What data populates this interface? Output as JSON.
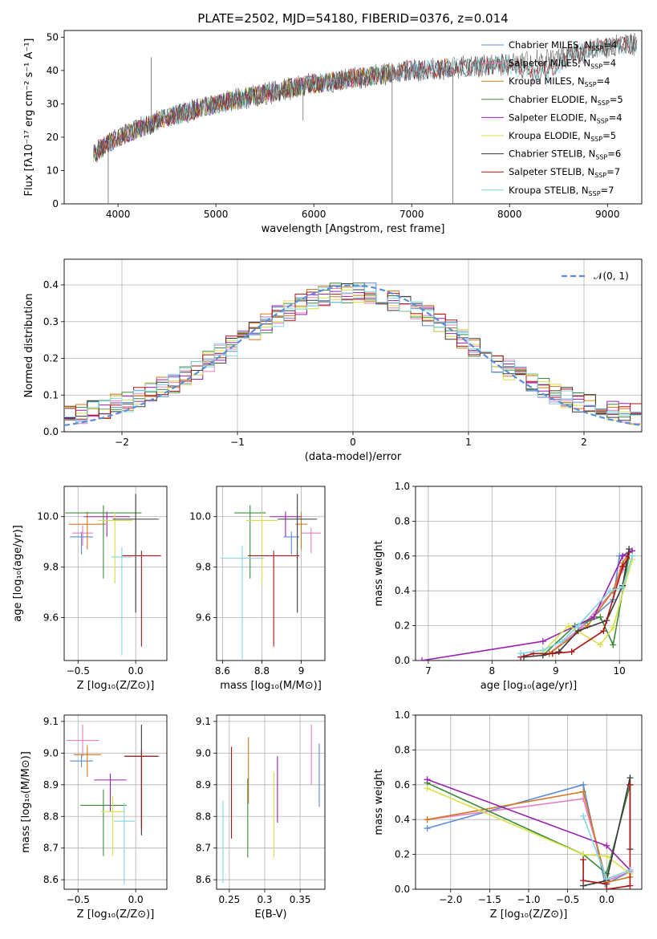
{
  "title": "PLATE=2502, MJD=54180, FIBERID=0376, z=0.014",
  "colors": {
    "Chabrier MILES": "#5b8ed8",
    "Salpeter MILES": "#e57ec0",
    "Kroupa MILES": "#d4761f",
    "Chabrier ELODIE": "#3c8a3c",
    "Salpeter ELODIE": "#9a1fb0",
    "Kroupa ELODIE": "#d8e048",
    "Chabrier STELIB": "#3a3a3a",
    "Salpeter STELIB": "#b01313",
    "Kroupa STELIB": "#7fd8e0",
    "normal": "#5b8ed8"
  },
  "chart_data": [
    {
      "type": "line",
      "id": "spectrum",
      "xlabel": "wavelength [Angstrom, rest frame]",
      "ylabel": "Flux [fλ10⁻¹⁷ erg cm⁻² s⁻¹ A⁻¹]",
      "xlim": [
        3450,
        9350
      ],
      "ylim": [
        0,
        52
      ],
      "xticks": [
        4000,
        5000,
        6000,
        7000,
        8000,
        9000
      ],
      "yticks": [
        0,
        10,
        20,
        30,
        40,
        50
      ],
      "legend_position": "upper right",
      "legend": [
        "Chabrier MILES, N_SSP=4",
        "Salpeter MILES, N_SSP=4",
        "Kroupa MILES, N_SSP=4",
        "Chabrier ELODIE, N_SSP=5",
        "Salpeter ELODIE, N_SSP=4",
        "Kroupa ELODIE, N_SSP=5",
        "Chabrier STELIB, N_SSP=6",
        "Salpeter STELIB, N_SSP=7",
        "Kroupa STELIB, N_SSP=7"
      ],
      "continuum": {
        "x": [
          3750,
          4000,
          4500,
          5000,
          5500,
          6000,
          6500,
          7000,
          7500,
          8000,
          8500,
          9000,
          9300
        ],
        "y": [
          15,
          20,
          26,
          30,
          33,
          36,
          38,
          40,
          41,
          42,
          44,
          47,
          48
        ]
      },
      "spikes": [
        {
          "x": 4340,
          "y": 44
        },
        {
          "x": 5890,
          "y": 25
        },
        {
          "x": 6800,
          "y": 0
        },
        {
          "x": 7420,
          "y": 0
        },
        {
          "x": 3900,
          "y": 0
        }
      ]
    },
    {
      "type": "line",
      "id": "residuals",
      "xlabel": "(data-model)/error",
      "ylabel": "Normed distribution",
      "xlim": [
        -2.5,
        2.5
      ],
      "ylim": [
        0,
        0.47
      ],
      "xticks": [
        -2,
        -1,
        0,
        1,
        2
      ],
      "yticks": [
        0.0,
        0.1,
        0.2,
        0.3,
        0.4
      ],
      "xtick_labels": [
        "−2",
        "−1",
        "0",
        "1",
        "2"
      ],
      "grid": true,
      "legend_label": "𝒩(0, 1)",
      "legend_position": "upper right",
      "gaussian": {
        "mu": 0,
        "sigma": 1
      }
    },
    {
      "type": "scatter",
      "id": "age-vs-Z",
      "xlabel": "Z [log₁₀(Z/Z⊙)]",
      "ylabel": "age  [log₁₀(age/yr)]",
      "xlim": [
        -0.62,
        0.27
      ],
      "ylim": [
        9.43,
        10.12
      ],
      "xticks": [
        -0.5,
        0.0
      ],
      "yticks": [
        9.6,
        9.8,
        10.0
      ],
      "xtick_labels": [
        "−0.5",
        "0.0"
      ],
      "points": [
        {
          "m": "Chabrier MILES",
          "x": -0.47,
          "xe": 0.1,
          "y": 9.92,
          "ye": [
            0.07,
            0.02
          ]
        },
        {
          "m": "Salpeter MILES",
          "x": -0.46,
          "xe": 0.09,
          "y": 9.935,
          "ye": [
            0.05,
            0.03
          ]
        },
        {
          "m": "Kroupa MILES",
          "x": -0.42,
          "xe": 0.16,
          "y": 9.97,
          "ye": [
            0.1,
            0.05
          ]
        },
        {
          "m": "Chabrier ELODIE",
          "x": -0.28,
          "xe": 0.33,
          "y": 10.015,
          "ye": [
            0.26,
            0.03
          ]
        },
        {
          "m": "Salpeter ELODIE",
          "x": -0.25,
          "xe": 0.2,
          "y": 10.0,
          "ye": [
            0.08,
            0.02
          ]
        },
        {
          "m": "Kroupa ELODIE",
          "x": -0.18,
          "xe": 0.15,
          "y": 9.985,
          "ye": [
            0.25,
            0.03
          ]
        },
        {
          "m": "Chabrier STELIB",
          "x": 0.0,
          "xe": 0.2,
          "y": 9.99,
          "ye": [
            0.37,
            0.1
          ]
        },
        {
          "m": "Salpeter STELIB",
          "x": 0.05,
          "xe": 0.17,
          "y": 9.845,
          "ye": [
            0.36,
            0.02
          ]
        },
        {
          "m": "Kroupa STELIB",
          "x": -0.12,
          "xe": 0.09,
          "y": 9.84,
          "ye": [
            0.39,
            0.04
          ]
        }
      ]
    },
    {
      "type": "scatter",
      "id": "age-vs-mass",
      "xlabel": "mass [log₁₀(M/M⊙)]",
      "xlim": [
        8.57,
        9.12
      ],
      "ylim": [
        9.43,
        10.12
      ],
      "xticks": [
        8.6,
        8.8,
        9.0
      ],
      "yticks": [
        9.6,
        9.8,
        10.0
      ],
      "points": [
        {
          "m": "Chabrier MILES",
          "x": 8.95,
          "xe": 0.04,
          "y": 9.92,
          "ye": [
            0.07,
            0.02
          ]
        },
        {
          "m": "Salpeter MILES",
          "x": 9.05,
          "xe": 0.05,
          "y": 9.935,
          "ye": [
            0.08,
            0.02
          ]
        },
        {
          "m": "Kroupa MILES",
          "x": 9.0,
          "xe": 0.03,
          "y": 9.97,
          "ye": [
            0.1,
            0.05
          ]
        },
        {
          "m": "Chabrier ELODIE",
          "x": 8.74,
          "xe": 0.08,
          "y": 10.015,
          "ye": [
            0.26,
            0.03
          ]
        },
        {
          "m": "Salpeter ELODIE",
          "x": 8.92,
          "xe": 0.08,
          "y": 10.0,
          "ye": [
            0.08,
            0.02
          ]
        },
        {
          "m": "Kroupa ELODIE",
          "x": 8.8,
          "xe": 0.08,
          "y": 9.985,
          "ye": [
            0.25,
            0.03
          ]
        },
        {
          "m": "Chabrier STELIB",
          "x": 8.98,
          "xe": 0.1,
          "y": 9.99,
          "ye": [
            0.37,
            0.1
          ]
        },
        {
          "m": "Salpeter STELIB",
          "x": 8.86,
          "xe": 0.13,
          "y": 9.845,
          "ye": [
            0.36,
            0.02
          ]
        },
        {
          "m": "Kroupa STELIB",
          "x": 8.7,
          "xe": 0.11,
          "y": 9.835,
          "ye": [
            0.4,
            0.05
          ]
        }
      ]
    },
    {
      "type": "line",
      "id": "mass-weight-vs-age",
      "xlabel": "age  [log₁₀(age/yr)]",
      "ylabel": "mass weight",
      "xlim": [
        6.8,
        10.35
      ],
      "ylim": [
        0,
        1
      ],
      "xticks": [
        7,
        8,
        9,
        10
      ],
      "yticks": [
        0.0,
        0.2,
        0.4,
        0.6,
        0.8,
        1.0
      ],
      "grid": true,
      "series": [
        {
          "m": "Chabrier MILES",
          "x": [
            8.9,
            9.4,
            9.9,
            10.0,
            10.15
          ],
          "y": [
            0.04,
            0.19,
            0.35,
            0.6,
            0.62
          ]
        },
        {
          "m": "Salpeter MILES",
          "x": [
            8.9,
            9.4,
            9.9,
            10.05,
            10.15
          ],
          "y": [
            0.04,
            0.19,
            0.4,
            0.52,
            0.6
          ]
        },
        {
          "m": "Kroupa MILES",
          "x": [
            8.9,
            9.5,
            9.9,
            10.05,
            10.15
          ],
          "y": [
            0.04,
            0.2,
            0.4,
            0.56,
            0.62
          ]
        },
        {
          "m": "Chabrier ELODIE",
          "x": [
            8.8,
            9.3,
            9.7,
            9.9,
            10.15
          ],
          "y": [
            0.03,
            0.2,
            0.25,
            0.09,
            0.6
          ]
        },
        {
          "m": "Salpeter ELODIE",
          "x": [
            6.9,
            8.8,
            9.6,
            10.05,
            10.2
          ],
          "y": [
            0.0,
            0.11,
            0.25,
            0.6,
            0.63
          ]
        },
        {
          "m": "Kroupa ELODIE",
          "x": [
            8.8,
            9.2,
            9.7,
            9.9,
            10.2
          ],
          "y": [
            0.05,
            0.2,
            0.09,
            0.19,
            0.58
          ]
        },
        {
          "m": "Chabrier STELIB",
          "x": [
            8.5,
            8.8,
            9.05,
            9.35,
            9.8,
            10.05,
            10.15
          ],
          "y": [
            0.02,
            0.03,
            0.05,
            0.17,
            0.23,
            0.43,
            0.64
          ]
        },
        {
          "m": "Salpeter STELIB",
          "x": [
            8.45,
            8.65,
            8.95,
            9.25,
            9.75,
            10.05,
            10.15
          ],
          "y": [
            0.02,
            0.04,
            0.04,
            0.05,
            0.17,
            0.54,
            0.6
          ]
        },
        {
          "m": "Kroupa STELIB",
          "x": [
            8.45,
            8.8,
            9.1,
            9.35,
            9.85,
            10.05,
            10.2
          ],
          "y": [
            0.04,
            0.06,
            0.11,
            0.2,
            0.4,
            0.42,
            0.6
          ]
        }
      ]
    },
    {
      "type": "scatter",
      "id": "mass-vs-Z",
      "xlabel": "Z [log₁₀(Z/Z⊙)]",
      "ylabel": "mass [log₁₀(M/M⊙)]",
      "xlim": [
        -0.62,
        0.27
      ],
      "ylim": [
        8.57,
        9.12
      ],
      "xticks": [
        -0.5,
        0.0
      ],
      "yticks": [
        8.6,
        8.7,
        8.8,
        8.9,
        9.0,
        9.1
      ],
      "xtick_labels": [
        "−0.5",
        "0.0"
      ],
      "points": [
        {
          "m": "Chabrier MILES",
          "x": -0.47,
          "xe": 0.1,
          "y": 8.975,
          "ye": [
            0.02,
            0.02
          ]
        },
        {
          "m": "Salpeter MILES",
          "x": -0.46,
          "xe": 0.14,
          "y": 9.04,
          "ye": [
            0.05,
            0.05
          ]
        },
        {
          "m": "Kroupa MILES",
          "x": -0.42,
          "xe": 0.12,
          "y": 8.995,
          "ye": [
            0.07,
            0.03
          ]
        },
        {
          "m": "Chabrier ELODIE",
          "x": -0.28,
          "xe": 0.2,
          "y": 8.835,
          "ye": [
            0.16,
            0.05
          ]
        },
        {
          "m": "Salpeter ELODIE",
          "x": -0.22,
          "xe": 0.14,
          "y": 8.915,
          "ye": [
            0.1,
            0.02
          ]
        },
        {
          "m": "Kroupa ELODIE",
          "x": -0.2,
          "xe": 0.1,
          "y": 8.815,
          "ye": [
            0.14,
            0.05
          ]
        },
        {
          "m": "Chabrier STELIB",
          "x": 0.05,
          "xe": 0.15,
          "y": 8.99,
          "ye": [
            0.25,
            0.1
          ]
        },
        {
          "m": "Salpeter STELIB",
          "x": 0.05,
          "xe": 0.14,
          "y": 8.99,
          "ye": [
            0.23,
            0.02
          ]
        },
        {
          "m": "Kroupa STELIB",
          "x": -0.1,
          "xe": 0.09,
          "y": 8.785,
          "ye": [
            0.2,
            0.06
          ]
        }
      ]
    },
    {
      "type": "scatter",
      "id": "mass-vs-ebv",
      "xlabel": "E(B-V)",
      "xlim": [
        0.232,
        0.385
      ],
      "ylim": [
        8.57,
        9.12
      ],
      "xticks": [
        0.25,
        0.3,
        0.35
      ],
      "yticks": [
        8.6,
        8.7,
        8.8,
        8.9,
        9.0,
        9.1
      ],
      "vlines": [
        {
          "m": "Kroupa STELIB",
          "x": 0.241,
          "y": [
            8.59,
            8.85
          ]
        },
        {
          "m": "Salpeter STELIB",
          "x": 0.253,
          "y": [
            8.73,
            9.02
          ]
        },
        {
          "m": "Kroupa MILES",
          "x": 0.277,
          "y": [
            8.84,
            9.05
          ]
        },
        {
          "m": "Chabrier ELODIE",
          "x": 0.276,
          "y": [
            8.67,
            8.92
          ]
        },
        {
          "m": "Kroupa ELODIE",
          "x": 0.313,
          "y": [
            8.67,
            8.94
          ]
        },
        {
          "m": "Salpeter ELODIE",
          "x": 0.318,
          "y": [
            8.78,
            8.99
          ]
        },
        {
          "m": "Salpeter MILES",
          "x": 0.366,
          "y": [
            8.9,
            9.09
          ]
        },
        {
          "m": "Chabrier MILES",
          "x": 0.377,
          "y": [
            8.83,
            9.03
          ]
        }
      ]
    },
    {
      "type": "line",
      "id": "mass-weight-vs-Z",
      "xlabel": "Z [log₁₀(Z/Z⊙)]",
      "ylabel": "mass weight",
      "xlim": [
        -2.45,
        0.45
      ],
      "ylim": [
        0,
        1
      ],
      "xticks": [
        -2.0,
        -1.5,
        -1.0,
        -0.5,
        0.0
      ],
      "yticks": [
        0.0,
        0.2,
        0.4,
        0.6,
        0.8,
        1.0
      ],
      "xtick_labels": [
        "−2.0",
        "−1.5",
        "−1.0",
        "−0.5",
        "0.0"
      ],
      "grid": true,
      "series": [
        {
          "m": "Chabrier MILES",
          "x": [
            -2.3,
            -0.3,
            -0.02,
            0.3
          ],
          "y": [
            0.35,
            0.6,
            0.03,
            0.1
          ]
        },
        {
          "m": "Salpeter MILES",
          "x": [
            -2.3,
            -0.3,
            0.0,
            0.3
          ],
          "y": [
            0.4,
            0.52,
            0.05,
            0.1
          ]
        },
        {
          "m": "Kroupa MILES",
          "x": [
            -2.3,
            -0.3,
            0.0,
            0.3
          ],
          "y": [
            0.4,
            0.56,
            0.04,
            0.07
          ]
        },
        {
          "m": "Chabrier ELODIE",
          "x": [
            -2.3,
            -0.3,
            0.0,
            0.3
          ],
          "y": [
            0.61,
            0.2,
            0.09,
            0.6
          ]
        },
        {
          "m": "Salpeter ELODIE",
          "x": [
            -2.3,
            0.0,
            0.3
          ],
          "y": [
            0.63,
            0.25,
            0.11
          ]
        },
        {
          "m": "Kroupa ELODIE",
          "x": [
            -2.3,
            -0.3,
            0.0,
            0.3
          ],
          "y": [
            0.58,
            0.2,
            0.19,
            0.09
          ]
        },
        {
          "m": "Chabrier STELIB",
          "x": [
            -0.3,
            0.0,
            0.3,
            0.3
          ],
          "y": [
            0.02,
            0.05,
            0.64,
            0.23
          ]
        },
        {
          "m": "Salpeter STELIB",
          "x": [
            -0.3,
            -0.3,
            0.0,
            0.0,
            0.3,
            0.3
          ],
          "y": [
            0.17,
            0.05,
            0.03,
            0.0,
            0.02,
            0.6
          ]
        },
        {
          "m": "Kroupa STELIB",
          "x": [
            -0.3,
            0.0,
            0.3
          ],
          "y": [
            0.42,
            0.06,
            0.11
          ]
        }
      ]
    }
  ]
}
